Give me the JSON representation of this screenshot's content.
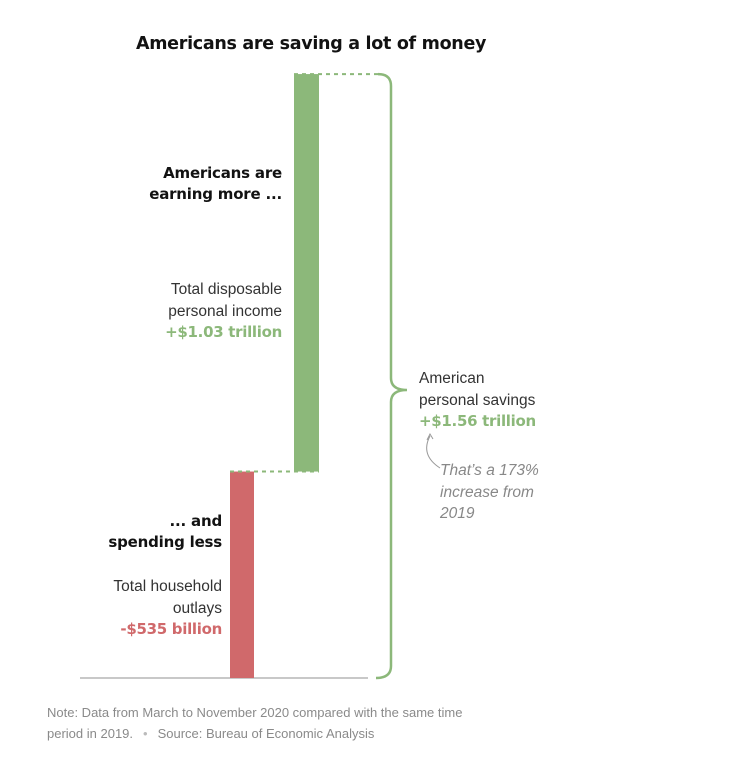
{
  "chart_data": {
    "type": "waterfall-bar",
    "title": "Americans are saving a lot of money",
    "units": "trillion USD",
    "bars": [
      {
        "name": "Total household outlays",
        "value": -0.535,
        "display": "-$535 billion",
        "color": "#d0696b"
      },
      {
        "name": "Total disposable personal income",
        "value": 1.03,
        "display": "+$1.03 trillion",
        "color": "#8cb87a"
      }
    ],
    "total": {
      "name": "American personal savings",
      "value": 1.56,
      "display": "+$1.56 trillion"
    }
  },
  "labels": {
    "income_heading": [
      "Americans are",
      "earning more ..."
    ],
    "income_desc": [
      "Total disposable",
      "personal income"
    ],
    "income_value": "+$1.03 trillion",
    "spending_heading": [
      "... and",
      "spending less"
    ],
    "spending_desc": [
      "Total household",
      "outlays"
    ],
    "spending_value": "-$535 billion",
    "savings_desc": [
      "American",
      "personal savings"
    ],
    "savings_value": "+$1.56 trillion",
    "annotation": [
      "That’s a 173%",
      "increase from",
      "2019"
    ]
  },
  "footer": {
    "note": "Note: Data from March to November 2020 compared with the same time",
    "note2": "period in 2019.",
    "separator": "•",
    "source": "Source: Bureau of Economic Analysis"
  },
  "colors": {
    "green": "#8cb87a",
    "red": "#d0696b",
    "baseline": "#c8c8c8"
  }
}
